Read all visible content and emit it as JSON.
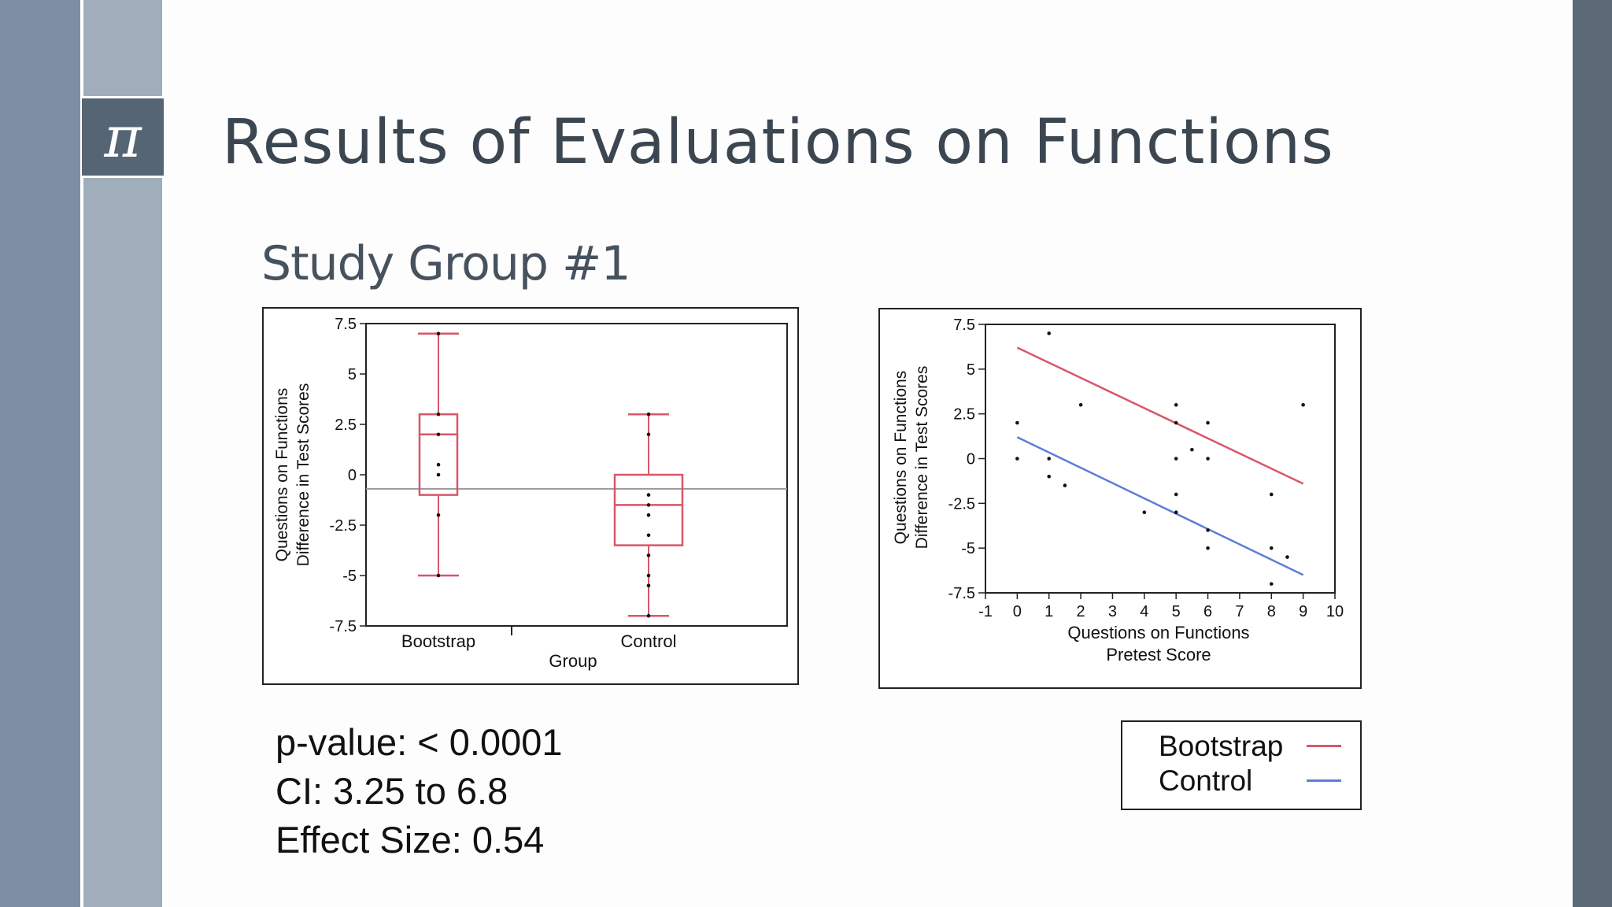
{
  "slide": {
    "title": "Results of Evaluations on Functions",
    "subtitle": "Study Group #1",
    "pi_symbol": "π"
  },
  "stats": {
    "p_value": "p-value: < 0.0001",
    "ci": "CI: 3.25 to 6.8",
    "effect_size": "Effect Size: 0.54"
  },
  "legend": {
    "entries": [
      {
        "label": "Bootstrap",
        "color": "#d9566a"
      },
      {
        "label": "Control",
        "color": "#5b7fd6"
      }
    ]
  },
  "chart_data": [
    {
      "type": "box",
      "xlabel": "Group",
      "ylabel_lines": [
        "Questions on Functions",
        "Difference in Test Scores"
      ],
      "ylim": [
        -7.5,
        7.5
      ],
      "yticks": [
        "7.5",
        "5",
        "2.5",
        "0",
        "-2.5",
        "-5",
        "-7.5"
      ],
      "reference_line": -0.7,
      "box_color": "#d9566a",
      "groups": [
        {
          "name": "Bootstrap",
          "min": -5,
          "q1": -1,
          "median": 2,
          "q3": 3,
          "max": 7,
          "points": [
            7,
            3,
            2,
            0.5,
            0,
            -2,
            -5
          ]
        },
        {
          "name": "Control",
          "min": -7,
          "q1": -3.5,
          "median": -1.5,
          "q3": 0,
          "max": 3,
          "points": [
            3,
            2,
            -1,
            -1.5,
            -2,
            -3,
            -4,
            -5,
            -5.5,
            -7
          ]
        }
      ]
    },
    {
      "type": "scatter",
      "xlabel_lines": [
        "Questions on Functions",
        "Pretest Score"
      ],
      "ylabel_lines": [
        "Questions on Functions",
        "Difference in Test Scores"
      ],
      "xlim": [
        -1,
        10
      ],
      "ylim": [
        -7.5,
        7.5
      ],
      "xticks": [
        "-1",
        "0",
        "1",
        "2",
        "3",
        "4",
        "5",
        "6",
        "7",
        "8",
        "9",
        "10"
      ],
      "yticks": [
        "7.5",
        "5",
        "2.5",
        "0",
        "-2.5",
        "-5",
        "-7.5"
      ],
      "points": [
        {
          "x": 0,
          "y": 2
        },
        {
          "x": 0,
          "y": 0
        },
        {
          "x": 1,
          "y": 7
        },
        {
          "x": 1,
          "y": 0
        },
        {
          "x": 1,
          "y": -1
        },
        {
          "x": 1.5,
          "y": -1.5
        },
        {
          "x": 2,
          "y": 3
        },
        {
          "x": 4,
          "y": -3
        },
        {
          "x": 5,
          "y": 3
        },
        {
          "x": 5,
          "y": 2
        },
        {
          "x": 5,
          "y": 0
        },
        {
          "x": 5,
          "y": -2
        },
        {
          "x": 5,
          "y": -3
        },
        {
          "x": 5.5,
          "y": 0.5
        },
        {
          "x": 6,
          "y": 2
        },
        {
          "x": 6,
          "y": 0
        },
        {
          "x": 6,
          "y": -4
        },
        {
          "x": 6,
          "y": -5
        },
        {
          "x": 8,
          "y": -2
        },
        {
          "x": 8,
          "y": -5
        },
        {
          "x": 8,
          "y": -7
        },
        {
          "x": 8.5,
          "y": -5.5
        },
        {
          "x": 9,
          "y": 3
        }
      ],
      "series": [
        {
          "name": "Bootstrap",
          "color": "#d9566a",
          "x": [
            0,
            9
          ],
          "y": [
            6.2,
            -1.4
          ]
        },
        {
          "name": "Control",
          "color": "#5b7fd6",
          "x": [
            0,
            9
          ],
          "y": [
            1.2,
            -6.5
          ]
        }
      ]
    }
  ]
}
